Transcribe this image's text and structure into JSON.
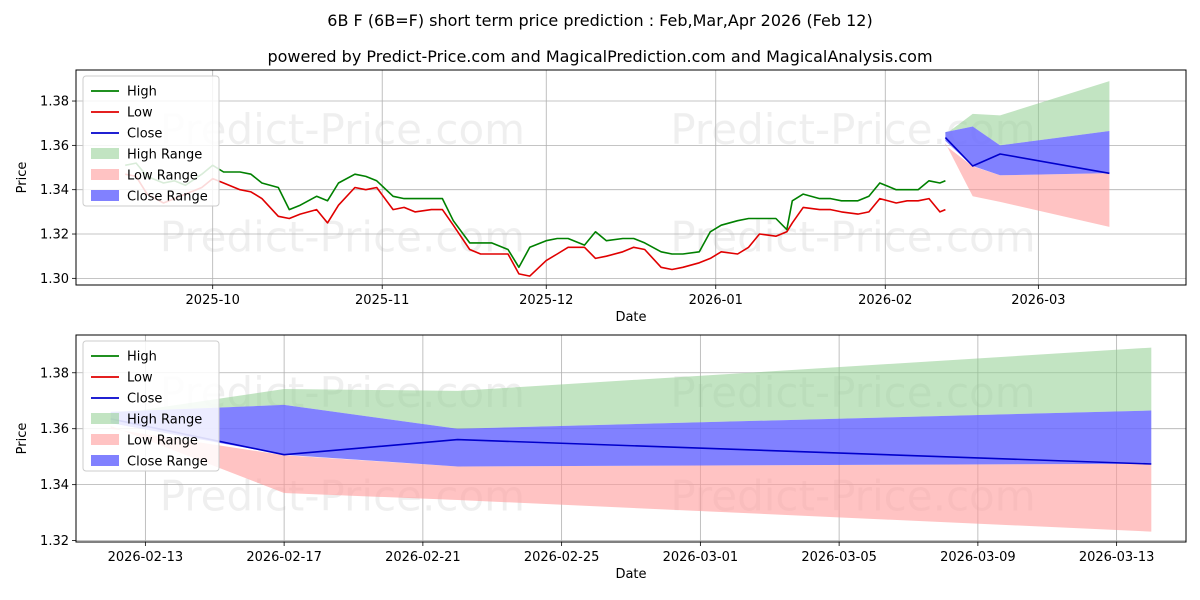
{
  "title": {
    "line1": "6B F (6B=F) short term price prediction : Feb,Mar,Apr 2026 (Feb 12)",
    "line2": "powered by Predict-Price.com and MagicalPrediction.com and MagicalAnalysis.com"
  },
  "watermark": "Predict-Price.com",
  "colors": {
    "high": "#008000",
    "low": "#e00000",
    "close": "#0000cc",
    "high_range": "#8fce8f",
    "low_range": "#ff9b9b",
    "close_range": "#6b6bff"
  },
  "chart_data": [
    {
      "type": "line",
      "name": "history-and-forecast",
      "xlabel": "Date",
      "ylabel": "Price",
      "xlim": [
        "2025-09-06",
        "2026-03-28"
      ],
      "ylim": [
        1.297,
        1.394
      ],
      "xticks": [
        {
          "date": "2025-10-01",
          "label": "2025-10"
        },
        {
          "date": "2025-11-01",
          "label": "2025-11"
        },
        {
          "date": "2025-12-01",
          "label": "2025-12"
        },
        {
          "date": "2026-01-01",
          "label": "2026-01"
        },
        {
          "date": "2026-02-01",
          "label": "2026-02"
        },
        {
          "date": "2026-03-01",
          "label": "2026-03"
        }
      ],
      "yticks": [
        1.3,
        1.32,
        1.34,
        1.36,
        1.38
      ],
      "ytick_labels": [
        "1.30",
        "1.32",
        "1.34",
        "1.36",
        "1.38"
      ],
      "legend": {
        "position": "top-left",
        "entries": [
          "High",
          "Low",
          "Close",
          "High Range",
          "Low Range",
          "Close Range"
        ]
      },
      "series": [
        {
          "name": "High",
          "kind": "line",
          "points": [
            [
              "2025-09-15",
              1.351
            ],
            [
              "2025-09-17",
              1.352
            ],
            [
              "2025-09-19",
              1.346
            ],
            [
              "2025-09-22",
              1.343
            ],
            [
              "2025-09-24",
              1.344
            ],
            [
              "2025-09-26",
              1.342
            ],
            [
              "2025-09-29",
              1.347
            ],
            [
              "2025-10-01",
              1.351
            ],
            [
              "2025-10-03",
              1.348
            ],
            [
              "2025-10-06",
              1.348
            ],
            [
              "2025-10-08",
              1.347
            ],
            [
              "2025-10-10",
              1.343
            ],
            [
              "2025-10-13",
              1.341
            ],
            [
              "2025-10-15",
              1.331
            ],
            [
              "2025-10-17",
              1.333
            ],
            [
              "2025-10-20",
              1.337
            ],
            [
              "2025-10-22",
              1.335
            ],
            [
              "2025-10-24",
              1.343
            ],
            [
              "2025-10-27",
              1.347
            ],
            [
              "2025-10-29",
              1.346
            ],
            [
              "2025-10-31",
              1.344
            ],
            [
              "2025-11-03",
              1.337
            ],
            [
              "2025-11-05",
              1.336
            ],
            [
              "2025-11-07",
              1.336
            ],
            [
              "2025-11-10",
              1.336
            ],
            [
              "2025-11-12",
              1.336
            ],
            [
              "2025-11-14",
              1.326
            ],
            [
              "2025-11-17",
              1.316
            ],
            [
              "2025-11-19",
              1.316
            ],
            [
              "2025-11-21",
              1.316
            ],
            [
              "2025-11-24",
              1.313
            ],
            [
              "2025-11-26",
              1.305
            ],
            [
              "2025-11-28",
              1.314
            ],
            [
              "2025-12-01",
              1.317
            ],
            [
              "2025-12-03",
              1.318
            ],
            [
              "2025-12-05",
              1.318
            ],
            [
              "2025-12-08",
              1.315
            ],
            [
              "2025-12-10",
              1.321
            ],
            [
              "2025-12-12",
              1.317
            ],
            [
              "2025-12-15",
              1.318
            ],
            [
              "2025-12-17",
              1.318
            ],
            [
              "2025-12-19",
              1.316
            ],
            [
              "2025-12-22",
              1.312
            ],
            [
              "2025-12-24",
              1.311
            ],
            [
              "2025-12-26",
              1.311
            ],
            [
              "2025-12-29",
              1.312
            ],
            [
              "2025-12-31",
              1.321
            ],
            [
              "2026-01-02",
              1.324
            ],
            [
              "2026-01-05",
              1.326
            ],
            [
              "2026-01-07",
              1.327
            ],
            [
              "2026-01-09",
              1.327
            ],
            [
              "2026-01-12",
              1.327
            ],
            [
              "2026-01-14",
              1.322
            ],
            [
              "2026-01-15",
              1.335
            ],
            [
              "2026-01-17",
              1.338
            ],
            [
              "2026-01-20",
              1.336
            ],
            [
              "2026-01-22",
              1.336
            ],
            [
              "2026-01-24",
              1.335
            ],
            [
              "2026-01-27",
              1.335
            ],
            [
              "2026-01-29",
              1.337
            ],
            [
              "2026-01-31",
              1.343
            ],
            [
              "2026-02-03",
              1.34
            ],
            [
              "2026-02-05",
              1.34
            ],
            [
              "2026-02-07",
              1.34
            ],
            [
              "2026-02-09",
              1.344
            ],
            [
              "2026-02-11",
              1.343
            ],
            [
              "2026-02-12",
              1.344
            ]
          ]
        },
        {
          "name": "Low",
          "kind": "line",
          "points": [
            [
              "2025-09-15",
              1.347
            ],
            [
              "2025-09-17",
              1.346
            ],
            [
              "2025-09-19",
              1.338
            ],
            [
              "2025-09-22",
              1.334
            ],
            [
              "2025-09-24",
              1.336
            ],
            [
              "2025-09-26",
              1.338
            ],
            [
              "2025-09-29",
              1.341
            ],
            [
              "2025-10-01",
              1.345
            ],
            [
              "2025-10-03",
              1.343
            ],
            [
              "2025-10-06",
              1.34
            ],
            [
              "2025-10-08",
              1.339
            ],
            [
              "2025-10-10",
              1.336
            ],
            [
              "2025-10-13",
              1.328
            ],
            [
              "2025-10-15",
              1.327
            ],
            [
              "2025-10-17",
              1.329
            ],
            [
              "2025-10-20",
              1.331
            ],
            [
              "2025-10-22",
              1.325
            ],
            [
              "2025-10-24",
              1.333
            ],
            [
              "2025-10-27",
              1.341
            ],
            [
              "2025-10-29",
              1.34
            ],
            [
              "2025-10-31",
              1.341
            ],
            [
              "2025-11-03",
              1.331
            ],
            [
              "2025-11-05",
              1.332
            ],
            [
              "2025-11-07",
              1.33
            ],
            [
              "2025-11-10",
              1.331
            ],
            [
              "2025-11-12",
              1.331
            ],
            [
              "2025-11-14",
              1.324
            ],
            [
              "2025-11-17",
              1.313
            ],
            [
              "2025-11-19",
              1.311
            ],
            [
              "2025-11-21",
              1.311
            ],
            [
              "2025-11-24",
              1.311
            ],
            [
              "2025-11-26",
              1.302
            ],
            [
              "2025-11-28",
              1.301
            ],
            [
              "2025-12-01",
              1.308
            ],
            [
              "2025-12-03",
              1.311
            ],
            [
              "2025-12-05",
              1.314
            ],
            [
              "2025-12-08",
              1.314
            ],
            [
              "2025-12-10",
              1.309
            ],
            [
              "2025-12-12",
              1.31
            ],
            [
              "2025-12-15",
              1.312
            ],
            [
              "2025-12-17",
              1.314
            ],
            [
              "2025-12-19",
              1.313
            ],
            [
              "2025-12-22",
              1.305
            ],
            [
              "2025-12-24",
              1.304
            ],
            [
              "2025-12-26",
              1.305
            ],
            [
              "2025-12-29",
              1.307
            ],
            [
              "2025-12-31",
              1.309
            ],
            [
              "2026-01-02",
              1.312
            ],
            [
              "2026-01-05",
              1.311
            ],
            [
              "2026-01-07",
              1.314
            ],
            [
              "2026-01-09",
              1.32
            ],
            [
              "2026-01-12",
              1.319
            ],
            [
              "2026-01-14",
              1.321
            ],
            [
              "2026-01-15",
              1.325
            ],
            [
              "2026-01-17",
              1.332
            ],
            [
              "2026-01-20",
              1.331
            ],
            [
              "2026-01-22",
              1.331
            ],
            [
              "2026-01-24",
              1.33
            ],
            [
              "2026-01-27",
              1.329
            ],
            [
              "2026-01-29",
              1.33
            ],
            [
              "2026-01-31",
              1.336
            ],
            [
              "2026-02-03",
              1.334
            ],
            [
              "2026-02-05",
              1.335
            ],
            [
              "2026-02-07",
              1.335
            ],
            [
              "2026-02-09",
              1.336
            ],
            [
              "2026-02-11",
              1.33
            ],
            [
              "2026-02-12",
              1.331
            ]
          ]
        },
        {
          "name": "Close",
          "kind": "line",
          "points": [
            [
              "2026-02-12",
              1.3635
            ],
            [
              "2026-02-17",
              1.3507
            ],
            [
              "2026-02-22",
              1.3561
            ],
            [
              "2026-03-14",
              1.3474
            ]
          ]
        },
        {
          "name": "High Range",
          "kind": "band",
          "points": [
            [
              "2026-02-12",
              1.365,
              1.366
            ],
            [
              "2026-02-17",
              1.3742,
              1.3685
            ],
            [
              "2026-02-22",
              1.3735,
              1.36
            ],
            [
              "2026-03-14",
              1.389,
              1.3665
            ]
          ]
        },
        {
          "name": "Low Range",
          "kind": "band",
          "points": [
            [
              "2026-02-12",
              1.36,
              1.361
            ],
            [
              "2026-02-17",
              1.3505,
              1.337
            ],
            [
              "2026-02-22",
              1.3465,
              1.3345
            ],
            [
              "2026-03-14",
              1.3475,
              1.3232
            ]
          ]
        },
        {
          "name": "Close Range",
          "kind": "band",
          "points": [
            [
              "2026-02-12",
              1.366,
              1.362
            ],
            [
              "2026-02-17",
              1.3685,
              1.3507
            ],
            [
              "2026-02-22",
              1.36,
              1.3465
            ],
            [
              "2026-03-14",
              1.3665,
              1.3475
            ]
          ]
        }
      ]
    },
    {
      "type": "line",
      "name": "forecast-zoom",
      "xlabel": "Date",
      "ylabel": "Price",
      "xlim": [
        "2026-02-11",
        "2026-03-15"
      ],
      "ylim": [
        1.3195,
        1.3935
      ],
      "xticks": [
        {
          "date": "2026-02-13",
          "label": "2026-02-13"
        },
        {
          "date": "2026-02-17",
          "label": "2026-02-17"
        },
        {
          "date": "2026-02-21",
          "label": "2026-02-21"
        },
        {
          "date": "2026-02-25",
          "label": "2026-02-25"
        },
        {
          "date": "2026-03-01",
          "label": "2026-03-01"
        },
        {
          "date": "2026-03-05",
          "label": "2026-03-05"
        },
        {
          "date": "2026-03-09",
          "label": "2026-03-09"
        },
        {
          "date": "2026-03-13",
          "label": "2026-03-13"
        }
      ],
      "yticks": [
        1.32,
        1.34,
        1.36,
        1.38
      ],
      "ytick_labels": [
        "1.32",
        "1.34",
        "1.36",
        "1.38"
      ],
      "legend": {
        "position": "top-left",
        "entries": [
          "High",
          "Low",
          "Close",
          "High Range",
          "Low Range",
          "Close Range"
        ]
      },
      "series": [
        {
          "name": "Close",
          "kind": "line",
          "points": [
            [
              "2026-02-12",
              1.3635
            ],
            [
              "2026-02-17",
              1.3507
            ],
            [
              "2026-02-22",
              1.3561
            ],
            [
              "2026-03-14",
              1.3474
            ]
          ]
        },
        {
          "name": "High Range",
          "kind": "band",
          "points": [
            [
              "2026-02-12",
              1.365,
              1.366
            ],
            [
              "2026-02-17",
              1.3742,
              1.3685
            ],
            [
              "2026-02-22",
              1.3735,
              1.36
            ],
            [
              "2026-03-14",
              1.389,
              1.3665
            ]
          ]
        },
        {
          "name": "Low Range",
          "kind": "band",
          "points": [
            [
              "2026-02-12",
              1.36,
              1.361
            ],
            [
              "2026-02-17",
              1.3505,
              1.337
            ],
            [
              "2026-02-22",
              1.3465,
              1.3345
            ],
            [
              "2026-03-14",
              1.3475,
              1.3232
            ]
          ]
        },
        {
          "name": "Close Range",
          "kind": "band",
          "points": [
            [
              "2026-02-12",
              1.366,
              1.362
            ],
            [
              "2026-02-17",
              1.3685,
              1.3507
            ],
            [
              "2026-02-22",
              1.36,
              1.3465
            ],
            [
              "2026-03-14",
              1.3665,
              1.3475
            ]
          ]
        }
      ]
    }
  ]
}
